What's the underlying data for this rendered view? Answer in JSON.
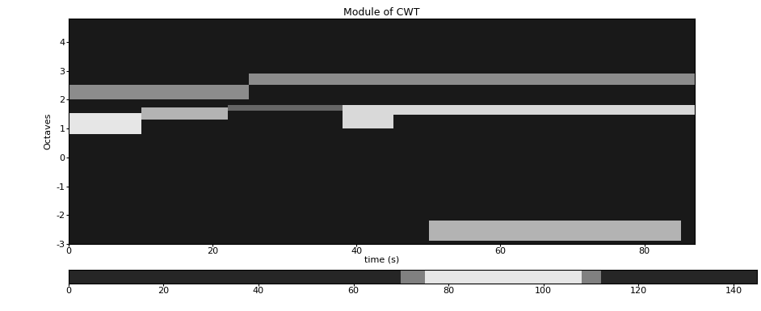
{
  "chart_data": [
    {
      "type": "heatmap",
      "title": "Module of CWT",
      "x_label": "time (s)",
      "y_label": "Octaves",
      "xlim": [
        0,
        87
      ],
      "ylim": [
        -3,
        4.8
      ],
      "xticks": [
        0,
        20,
        40,
        60,
        80
      ],
      "yticks": [
        -3,
        -2,
        -1,
        0,
        1,
        2,
        3,
        4
      ],
      "color": "gray",
      "clim": [
        0,
        1
      ],
      "background": 0.1,
      "bands": [
        {
          "x": [
            0,
            25
          ],
          "y": [
            2.0,
            2.5
          ],
          "value": 0.55
        },
        {
          "x": [
            25,
            87
          ],
          "y": [
            2.5,
            2.9
          ],
          "value": 0.55
        },
        {
          "x": [
            0,
            10
          ],
          "y": [
            0.8,
            1.5
          ],
          "value": 0.9
        },
        {
          "x": [
            10,
            22
          ],
          "y": [
            1.3,
            1.7
          ],
          "value": 0.7
        },
        {
          "x": [
            22,
            38
          ],
          "y": [
            1.6,
            1.8
          ],
          "value": 0.4
        },
        {
          "x": [
            38,
            45
          ],
          "y": [
            1.0,
            1.8
          ],
          "value": 0.85
        },
        {
          "x": [
            45,
            87
          ],
          "y": [
            1.45,
            1.8
          ],
          "value": 0.85
        },
        {
          "x": [
            50,
            85
          ],
          "y": [
            -2.9,
            -2.2
          ],
          "value": 0.7
        }
      ]
    },
    {
      "type": "strip",
      "xlim": [
        0,
        145
      ],
      "xticks": [
        0,
        20,
        40,
        60,
        80,
        100,
        120,
        140
      ],
      "tick_labels": "x",
      "color": "gray",
      "clim": [
        0,
        1
      ],
      "background": 0.15,
      "bands": [
        {
          "x": [
            70,
            75
          ],
          "value": 0.5
        },
        {
          "x": [
            75,
            108
          ],
          "value": 0.9
        },
        {
          "x": [
            108,
            112
          ],
          "value": 0.5
        }
      ]
    }
  ]
}
